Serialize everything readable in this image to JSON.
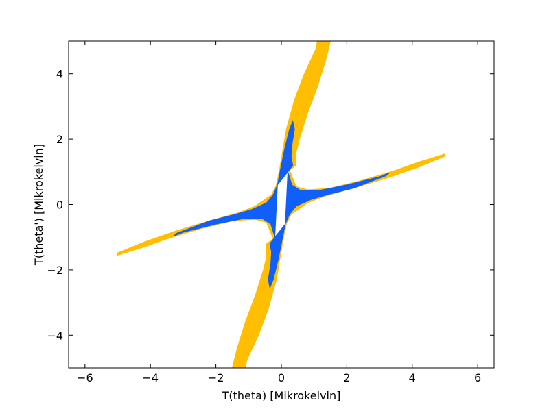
{
  "chart_data": {
    "type": "area",
    "title": "",
    "xlabel": "T(theta) [Mikrokelvin]",
    "ylabel": "T(theta') [Mikrokelvin]",
    "xlim": [
      -6.5,
      6.5
    ],
    "ylim": [
      -5,
      5
    ],
    "xticks": [
      -6,
      -4,
      -2,
      0,
      2,
      4,
      6
    ],
    "yticks": [
      -4,
      -2,
      0,
      2,
      4
    ],
    "xtick_labels": [
      "−6",
      "−4",
      "−2",
      "0",
      "2",
      "4",
      "6"
    ],
    "ytick_labels": [
      "−4",
      "−2",
      "0",
      "2",
      "4"
    ],
    "grid": false,
    "legend": "none",
    "regions": [
      {
        "color": "#ffbf00",
        "arm_right": [
          [
            0.25,
            1.05
          ],
          [
            0.45,
            0.55
          ],
          [
            0.8,
            0.45
          ],
          [
            1.5,
            0.5
          ],
          [
            2.5,
            0.75
          ],
          [
            3.5,
            1.05
          ],
          [
            4.2,
            1.3
          ],
          [
            5.0,
            1.55
          ],
          [
            5.0,
            1.48
          ],
          [
            4.2,
            1.15
          ],
          [
            3.2,
            0.8
          ],
          [
            2.2,
            0.5
          ],
          [
            1.3,
            0.25
          ],
          [
            0.8,
            0.05
          ],
          [
            0.3,
            -0.3
          ],
          [
            0.15,
            -0.6
          ]
        ],
        "arm_up": [
          [
            -0.15,
            0.6
          ],
          [
            -0.05,
            1.1
          ],
          [
            0.05,
            1.7
          ],
          [
            0.15,
            2.3
          ],
          [
            0.4,
            3.2
          ],
          [
            0.7,
            4.0
          ],
          [
            1.05,
            4.75
          ],
          [
            1.1,
            5.0
          ],
          [
            1.5,
            5.0
          ],
          [
            1.35,
            4.4
          ],
          [
            1.1,
            3.6
          ],
          [
            0.8,
            2.8
          ],
          [
            0.55,
            2.0
          ],
          [
            0.45,
            1.6
          ],
          [
            0.45,
            1.2
          ],
          [
            0.25,
            1.05
          ]
        ]
      },
      {
        "color": "#0f5ff8",
        "arm_right": [
          [
            0.2,
            1.0
          ],
          [
            0.32,
            0.6
          ],
          [
            0.6,
            0.42
          ],
          [
            1.1,
            0.42
          ],
          [
            2.0,
            0.6
          ],
          [
            3.0,
            0.85
          ],
          [
            3.3,
            0.97
          ],
          [
            3.2,
            0.88
          ],
          [
            2.2,
            0.5
          ],
          [
            1.4,
            0.3
          ],
          [
            0.9,
            0.15
          ],
          [
            0.45,
            -0.05
          ],
          [
            0.25,
            -0.3
          ],
          [
            0.12,
            -0.6
          ]
        ],
        "arm_up": [
          [
            -0.12,
            0.6
          ],
          [
            -0.02,
            1.1
          ],
          [
            0.1,
            1.7
          ],
          [
            0.25,
            2.3
          ],
          [
            0.35,
            2.55
          ],
          [
            0.4,
            2.3
          ],
          [
            0.32,
            1.8
          ],
          [
            0.3,
            1.45
          ],
          [
            0.35,
            1.2
          ],
          [
            0.2,
            1.0
          ]
        ]
      }
    ],
    "symmetry": "point symmetric about the origin (each region is mirrored through (0, 0))"
  }
}
